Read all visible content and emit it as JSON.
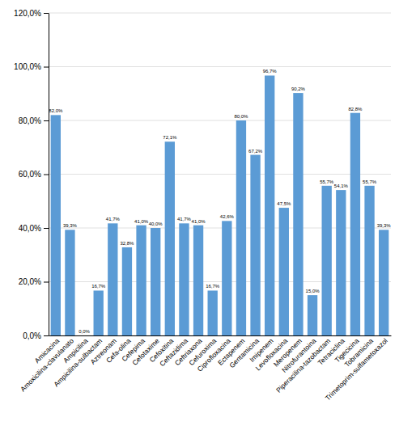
{
  "chart_data": {
    "type": "bar",
    "categories": [
      "Amicacina",
      "Amoxicilina-clavulanato",
      "Ampicilina",
      "Ampicilina-sulbactam",
      "Aztreonam",
      "Cefa-olina",
      "Cefepima",
      "Cefotaxime",
      "Cefoxitina",
      "Ceftazidima",
      "Ceftriaxona",
      "Cefuroxima",
      "Ciprofloxacina",
      "Ectapenem",
      "Gentamicina",
      "Imipenem",
      "Levofloxacina",
      "Meropenem",
      "Nitrofurantoina",
      "Piperacilina-tazobactam",
      "Tetraciclina",
      "Tigecicina",
      "Tobramicina",
      "Trimetoprim-sulfametoxazol"
    ],
    "values": [
      82.0,
      39.3,
      0.0,
      16.7,
      41.7,
      32.8,
      41.0,
      40.0,
      72.1,
      41.7,
      41.0,
      16.7,
      42.6,
      80.0,
      67.2,
      96.7,
      47.5,
      90.2,
      15.0,
      55.7,
      54.1,
      82.8,
      55.7,
      39.3
    ],
    "value_labels": [
      "82,0%",
      "39,3%",
      "0,0%",
      "16,7%",
      "41,7%",
      "32,8%",
      "41,0%",
      "40,0%",
      "72,1%",
      "41,7%",
      "41,0%",
      "16,7%",
      "42,6%",
      "80,0%",
      "67,2%",
      "96,7%",
      "47,5%",
      "90,2%",
      "15,0%",
      "55,7%",
      "54,1%",
      "82,8%",
      "55,7%",
      "39,3%"
    ],
    "color": "#5B9BD5",
    "ylim": [
      0,
      120
    ],
    "yticks": [
      {
        "value": 0,
        "label": "0,0%"
      },
      {
        "value": 20,
        "label": "20,0%"
      },
      {
        "value": 40,
        "label": "40,0%"
      },
      {
        "value": 60,
        "label": "60,0%"
      },
      {
        "value": 80,
        "label": "80,0%"
      },
      {
        "value": 100,
        "label": "100,0%"
      },
      {
        "value": 120,
        "label": "120,0%"
      }
    ],
    "grid": true,
    "data_labels": true
  }
}
